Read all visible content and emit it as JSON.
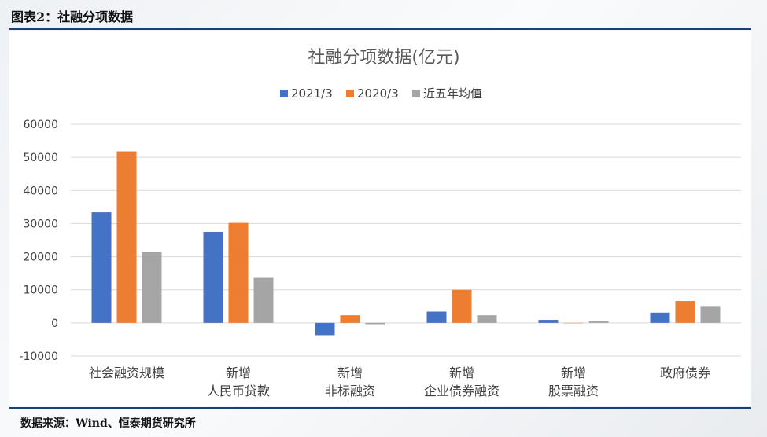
{
  "header": {
    "title": "图表2：社融分项数据"
  },
  "footer": {
    "source": "数据来源：Wind、恒泰期货研究所"
  },
  "colors": {
    "rule": "#1f3f6e",
    "series_2021": "#4472c4",
    "series_2020": "#ed7d31",
    "series_avg": "#a5a5a5",
    "grid": "#d9d9d9"
  },
  "chart_data": {
    "type": "bar",
    "title": "社融分项数据(亿元)",
    "categories": [
      [
        "社会融资规模"
      ],
      [
        "新增",
        "人民币贷款"
      ],
      [
        "新增",
        "非标融资"
      ],
      [
        "新增",
        "企业债券融资"
      ],
      [
        "新增",
        "股票融资"
      ],
      [
        "政府债券"
      ]
    ],
    "series": [
      {
        "name": "2021/3",
        "color": "#4472c4",
        "values": [
          33400,
          27500,
          -3700,
          3400,
          900,
          3100
        ]
      },
      {
        "name": "2020/3",
        "color": "#ed7d31",
        "values": [
          51800,
          30200,
          2300,
          10000,
          -100,
          6600
        ]
      },
      {
        "name": "近五年均值",
        "color": "#a5a5a5",
        "values": [
          21500,
          13600,
          -400,
          2300,
          500,
          5100
        ]
      }
    ],
    "ylim": [
      -10000,
      60000
    ],
    "yticks": [
      60000,
      50000,
      40000,
      30000,
      20000,
      10000,
      0,
      -10000
    ],
    "grid": true,
    "legend_position": "top-center",
    "xlabel": "",
    "ylabel": ""
  }
}
